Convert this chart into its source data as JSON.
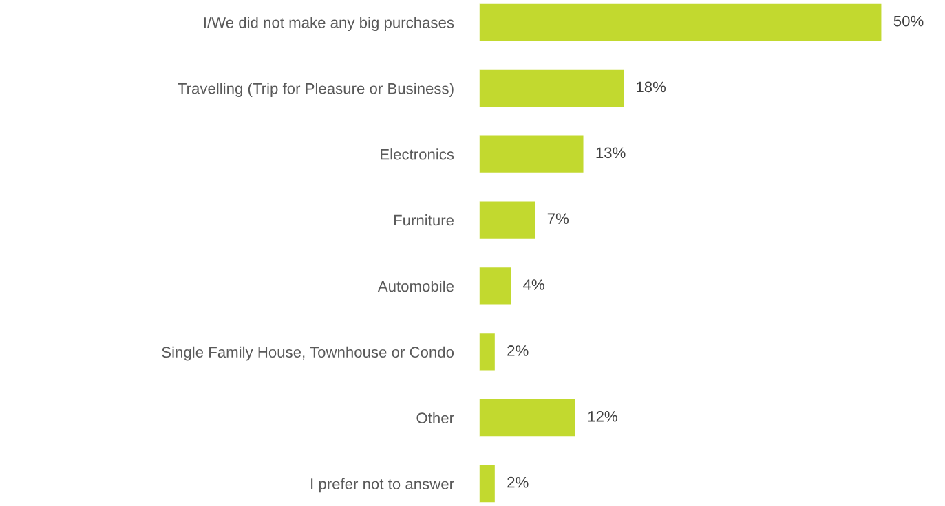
{
  "chart_data": {
    "type": "bar",
    "orientation": "horizontal",
    "categories": [
      "I/We did not make any big purchases",
      "Travelling (Trip for Pleasure or Business)",
      "Electronics",
      "Furniture",
      "Automobile",
      "Single Family House, Townhouse or Condo",
      "Other",
      "I prefer not to answer"
    ],
    "values": [
      50,
      18,
      13,
      7,
      4,
      2,
      12,
      2
    ],
    "value_labels": [
      "50%",
      "18%",
      "13%",
      "7%",
      "4%",
      "2%",
      "12%",
      "2%"
    ],
    "color": "#c2d92f"
  }
}
